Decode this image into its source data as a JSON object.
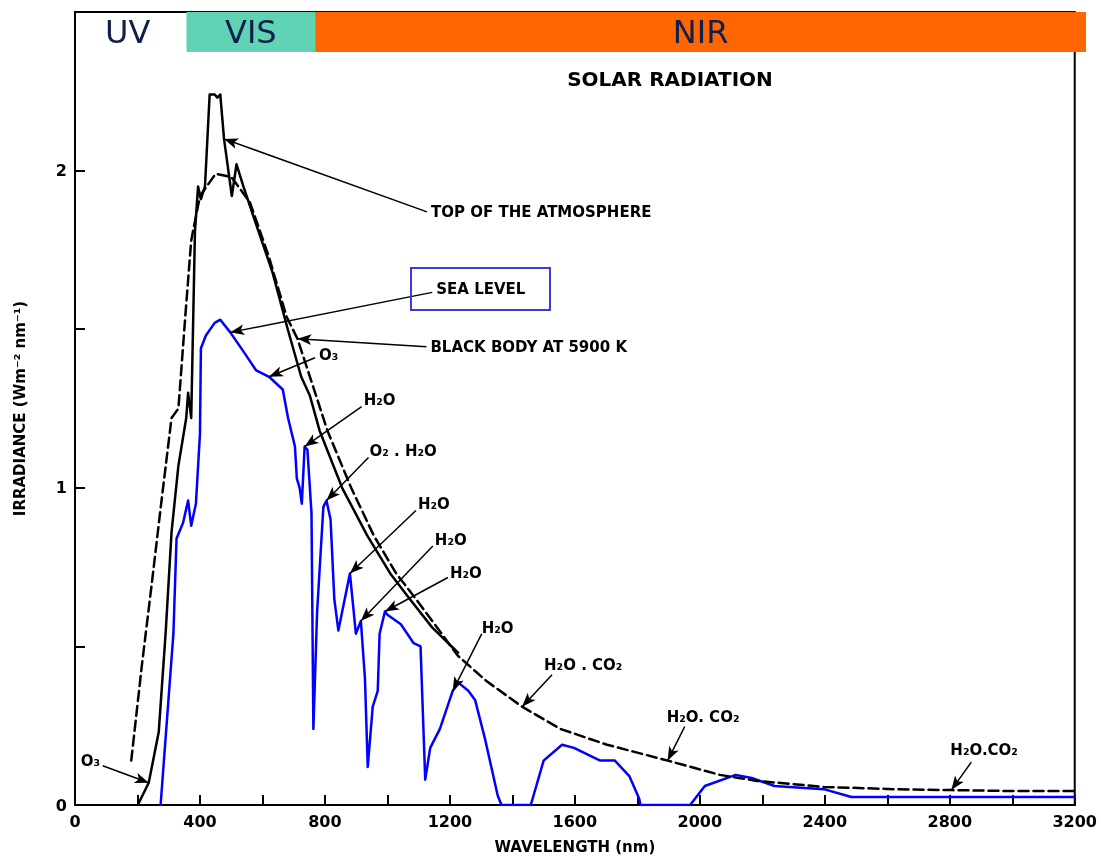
{
  "chart_data": {
    "type": "line",
    "title": "SOLAR RADIATION",
    "xlabel": "WAVELENGTH (nm)",
    "ylabel": "IRRADIANCE (Wm⁻² nm⁻¹)",
    "xlim": [
      0,
      3200
    ],
    "ylim": [
      0,
      2.5
    ],
    "xticks": [
      0,
      {
        "value": 200,
        "label": null
      },
      400,
      {
        "value": 600,
        "label": null
      },
      800,
      {
        "value": 1000,
        "label": null
      },
      1200,
      {
        "value": 1400,
        "label": null
      },
      1600,
      {
        "value": 1800,
        "label": null
      },
      2000,
      {
        "value": 2200,
        "label": null
      },
      2400,
      {
        "value": 2600,
        "label": null
      },
      2800,
      {
        "value": 3000,
        "label": null
      },
      3200
    ],
    "yticks": [
      0,
      {
        "value": 0.5,
        "label": null
      },
      1,
      {
        "value": 1.5,
        "label": null
      },
      2
    ],
    "marker": "none",
    "series": [
      {
        "color": "#000000",
        "line_style": "solid",
        "x": [
          201,
          236,
          268,
          290,
          309,
          331,
          356,
          362,
          372,
          384,
          394,
          403,
          416,
          431,
          447,
          456,
          465,
          477,
          502,
          517,
          539,
          580,
          632,
          681,
          724,
          752,
          783,
          855,
          935,
          1009,
          1071,
          1143,
          1226
        ],
        "values": [
          0,
          0.07,
          0.23,
          0.54,
          0.86,
          1.07,
          1.22,
          1.3,
          1.22,
          1.81,
          1.95,
          1.91,
          1.95,
          2.24,
          2.24,
          2.23,
          2.24,
          2.1,
          1.92,
          2.02,
          1.95,
          1.83,
          1.68,
          1.5,
          1.35,
          1.29,
          1.18,
          1.0,
          0.85,
          0.73,
          0.65,
          0.56,
          0.48
        ]
      },
      {
        "color": "#0000ff",
        "line_style": "solid",
        "x": [
          274,
          299,
          315,
          325,
          346,
          362,
          372,
          387,
          400,
          403,
          419,
          447,
          465,
          497,
          539,
          580,
          621,
          665,
          682,
          704,
          710,
          719,
          726,
          735,
          744,
          757,
          763,
          775,
          795,
          805,
          818,
          830,
          843,
          880,
          899,
          915,
          928,
          937,
          953,
          969,
          975,
          992,
          1000,
          1043,
          1084,
          1106,
          1121,
          1137,
          1168,
          1209,
          1228,
          1259,
          1281,
          1312,
          1353,
          1365,
          1459,
          1500,
          1559,
          1597,
          1681,
          1728,
          1775,
          1806,
          1810,
          1969,
          2016,
          2115,
          2166,
          2239,
          2397,
          2485,
          2558,
          2800,
          3200
        ],
        "values": [
          0,
          0.33,
          0.54,
          0.84,
          0.89,
          0.96,
          0.88,
          0.95,
          1.17,
          1.44,
          1.48,
          1.52,
          1.53,
          1.49,
          1.43,
          1.37,
          1.35,
          1.31,
          1.22,
          1.13,
          1.03,
          1.0,
          0.95,
          1.13,
          1.12,
          0.92,
          0.24,
          0.61,
          0.94,
          0.96,
          0.9,
          0.65,
          0.55,
          0.73,
          0.54,
          0.58,
          0.4,
          0.12,
          0.31,
          0.36,
          0.54,
          0.61,
          0.6,
          0.57,
          0.51,
          0.5,
          0.08,
          0.18,
          0.24,
          0.36,
          0.385,
          0.36,
          0.33,
          0.21,
          0.03,
          0,
          0,
          0.14,
          0.19,
          0.18,
          0.14,
          0.14,
          0.09,
          0.02,
          0,
          0,
          0.06,
          0.095,
          0.085,
          0.06,
          0.05,
          0.025,
          0.025,
          0.025,
          0.025
        ]
      },
      {
        "color": "#000000",
        "line_style": "dashed",
        "x": [
          180,
          214,
          246,
          277,
          309,
          331,
          353,
          372,
          400,
          450,
          500,
          560,
          620,
          677,
          712,
          752,
          808,
          884,
          956,
          1028,
          1091,
          1226,
          1318,
          1431,
          1553,
          1703,
          1897,
          2064,
          2183,
          2397,
          2620,
          2805,
          3000,
          3200
        ],
        "values": [
          0.14,
          0.44,
          0.7,
          0.96,
          1.22,
          1.25,
          1.54,
          1.78,
          1.92,
          1.99,
          1.98,
          1.9,
          1.73,
          1.54,
          1.47,
          1.35,
          1.18,
          1.0,
          0.85,
          0.73,
          0.65,
          0.47,
          0.39,
          0.31,
          0.24,
          0.19,
          0.14,
          0.095,
          0.076,
          0.057,
          0.05,
          0.047,
          0.044,
          0.044
        ]
      }
    ],
    "bands": [
      {
        "axis": "x",
        "from": 353,
        "to": 760,
        "label": "VIS",
        "color": "#5fd3b3"
      },
      {
        "axis": "x",
        "from": 760,
        "to": 3200,
        "label": "NIR",
        "color": "#ff6600"
      }
    ],
    "annotations": [
      "UV",
      {
        "text": "TOP OF THE ATMOSPHERE",
        "x": 477,
        "y": 2.1
      },
      {
        "text": "SEA LEVEL",
        "x": 497,
        "y": 1.49
      },
      {
        "text": "BLACK BODY AT 5900 K",
        "x": 712,
        "y": 1.47
      },
      {
        "text": "O₃",
        "x": 621,
        "y": 1.35
      },
      {
        "text": "H₂O",
        "x": 735,
        "y": 1.13
      },
      {
        "text": "O₂ . H₂O",
        "x": 805,
        "y": 0.96
      },
      {
        "text": "H₂O",
        "x": 880,
        "y": 0.73
      },
      {
        "text": "H₂O",
        "x": 915,
        "y": 0.58
      },
      {
        "text": "H₂O",
        "x": 992,
        "y": 0.61
      },
      {
        "text": "H₂O",
        "x": 1209,
        "y": 0.36
      },
      {
        "text": "H₂O . CO₂",
        "x": 1431,
        "y": 0.31
      },
      {
        "text": "H₂O. CO₂",
        "x": 1897,
        "y": 0.14
      },
      {
        "text": "H₂O.CO₂",
        "x": 2805,
        "y": 0.047
      },
      {
        "text": "O₃",
        "x": 236,
        "y": 0.07
      }
    ]
  }
}
